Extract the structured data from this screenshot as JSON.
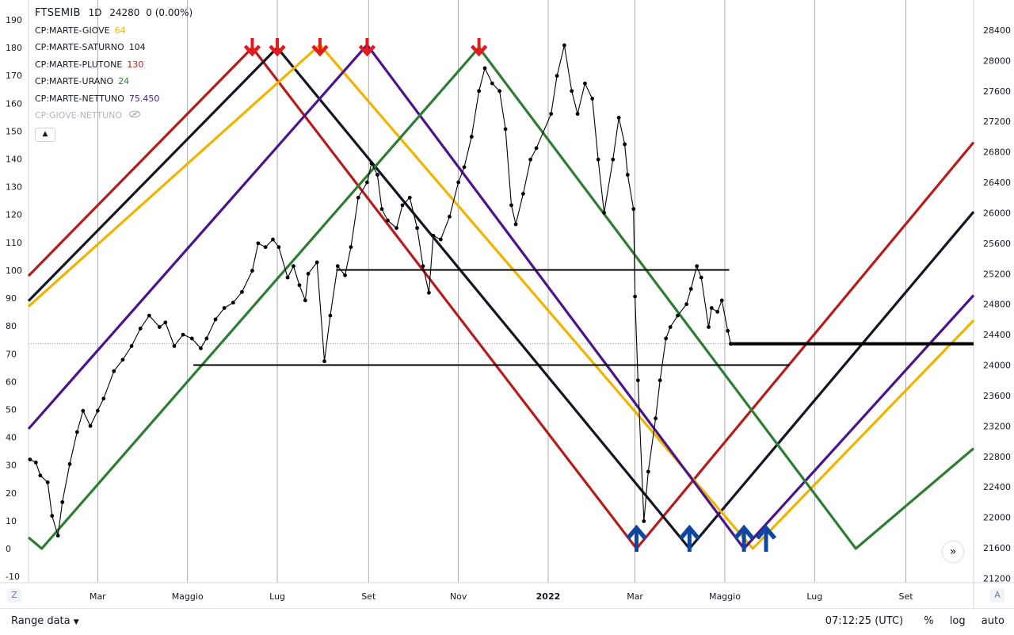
{
  "legend": {
    "symbol": "FTSEMIB",
    "interval": "1D",
    "price": "24280",
    "change": "0 (0.00%)",
    "series": [
      {
        "name": "CP:MARTE-GIOVE",
        "value": "64",
        "color": "#f0b400"
      },
      {
        "name": "CP:MARTE-SATURNO",
        "value": "104",
        "color": "#131722"
      },
      {
        "name": "CP:MARTE-PLUTONE",
        "value": "130",
        "color": "#b71c1c"
      },
      {
        "name": "CP:MARTE-URANO",
        "value": "24",
        "color": "#2e7d32"
      },
      {
        "name": "CP:MARTE-NETTUNO",
        "value": "75.450",
        "color": "#4a148c"
      },
      {
        "name": "CP:GIOVE-NETTUNO",
        "value": "",
        "color": "#b2b5be"
      }
    ],
    "collapse_icon": "chevron-up-icon",
    "hidden_icon": "eye-off-icon"
  },
  "footer": {
    "range_label": "Range data",
    "time": "07:12:25 (UTC)",
    "percent": "%",
    "log": "log",
    "auto": "auto"
  },
  "corner": {
    "left": "Z",
    "right": "A"
  },
  "chart_data": {
    "type": "line",
    "x_axis_labels": [
      "Mar",
      "Maggio",
      "Lug",
      "Set",
      "Nov",
      "2022",
      "Mar",
      "Maggio",
      "Lug",
      "Set"
    ],
    "x_axis_dates": [
      "2021-03-01",
      "2021-05-01",
      "2021-07-01",
      "2021-09-01",
      "2021-11-01",
      "2022-01-01",
      "2022-03-01",
      "2022-05-01",
      "2022-07-01",
      "2022-09-01"
    ],
    "x_range": [
      "2021-01-13",
      "2022-10-17"
    ],
    "left_axis": {
      "ticks": [
        -10,
        0,
        10,
        20,
        30,
        40,
        50,
        60,
        70,
        80,
        90,
        100,
        110,
        120,
        130,
        140,
        150,
        160,
        170,
        180,
        190
      ],
      "range": [
        -13,
        194
      ]
    },
    "right_axis": {
      "ticks": [
        21200,
        21600,
        22000,
        22400,
        22800,
        23200,
        23600,
        24000,
        24400,
        24800,
        25200,
        25600,
        26000,
        26400,
        26800,
        27200,
        27600,
        28000,
        28400
      ],
      "range": [
        21130,
        28560
      ]
    },
    "cycle_lines": [
      {
        "name": "CP:MARTE-PLUTONE",
        "color": "#b71c1c",
        "points": [
          [
            "2021-01-13",
            98
          ],
          [
            "2021-06-14",
            180
          ],
          [
            "2022-03-02",
            0
          ],
          [
            "2022-10-17",
            146
          ]
        ]
      },
      {
        "name": "CP:MARTE-SATURNO",
        "color": "#131722",
        "points": [
          [
            "2021-01-13",
            89
          ],
          [
            "2021-07-01",
            180
          ],
          [
            "2022-04-07",
            0
          ],
          [
            "2022-10-17",
            121
          ]
        ]
      },
      {
        "name": "CP:MARTE-GIOVE",
        "color": "#f0b400",
        "points": [
          [
            "2021-01-13",
            87
          ],
          [
            "2021-07-30",
            181
          ],
          [
            "2022-05-20",
            0
          ],
          [
            "2022-10-17",
            82
          ]
        ]
      },
      {
        "name": "CP:MARTE-NETTUNO",
        "color": "#4a148c",
        "points": [
          [
            "2021-01-13",
            43
          ],
          [
            "2021-08-31",
            181
          ],
          [
            "2022-05-14",
            0
          ],
          [
            "2022-10-17",
            91
          ]
        ]
      },
      {
        "name": "CP:MARTE-URANO",
        "color": "#2e7d32",
        "points": [
          [
            "2021-01-13",
            4
          ],
          [
            "2021-01-22",
            0
          ],
          [
            "2021-11-15",
            180
          ],
          [
            "2022-07-29",
            0
          ],
          [
            "2022-10-17",
            36
          ]
        ]
      }
    ],
    "price_series": {
      "name": "FTSEMIB",
      "axis": "right",
      "points": [
        [
          "2021-01-14",
          22760
        ],
        [
          "2021-01-18",
          22720
        ],
        [
          "2021-01-21",
          22550
        ],
        [
          "2021-01-26",
          22460
        ],
        [
          "2021-01-29",
          22020
        ],
        [
          "2021-02-02",
          21760
        ],
        [
          "2021-02-05",
          22200
        ],
        [
          "2021-02-10",
          22700
        ],
        [
          "2021-02-15",
          23120
        ],
        [
          "2021-02-19",
          23400
        ],
        [
          "2021-02-24",
          23200
        ],
        [
          "2021-03-01",
          23400
        ],
        [
          "2021-03-05",
          23560
        ],
        [
          "2021-03-12",
          23920
        ],
        [
          "2021-03-18",
          24070
        ],
        [
          "2021-03-24",
          24250
        ],
        [
          "2021-03-30",
          24480
        ],
        [
          "2021-04-05",
          24650
        ],
        [
          "2021-04-12",
          24500
        ],
        [
          "2021-04-16",
          24560
        ],
        [
          "2021-04-22",
          24250
        ],
        [
          "2021-04-28",
          24400
        ],
        [
          "2021-05-04",
          24350
        ],
        [
          "2021-05-10",
          24220
        ],
        [
          "2021-05-14",
          24350
        ],
        [
          "2021-05-20",
          24600
        ],
        [
          "2021-05-26",
          24750
        ],
        [
          "2021-06-01",
          24820
        ],
        [
          "2021-06-07",
          24960
        ],
        [
          "2021-06-14",
          25240
        ],
        [
          "2021-06-18",
          25600
        ],
        [
          "2021-06-23",
          25550
        ],
        [
          "2021-06-28",
          25650
        ],
        [
          "2021-07-02",
          25550
        ],
        [
          "2021-07-08",
          25150
        ],
        [
          "2021-07-12",
          25300
        ],
        [
          "2021-07-16",
          25050
        ],
        [
          "2021-07-20",
          24850
        ],
        [
          "2021-07-22",
          25200
        ],
        [
          "2021-07-28",
          25350
        ],
        [
          "2021-08-02",
          24050
        ],
        [
          "2021-08-06",
          24650
        ],
        [
          "2021-08-11",
          25300
        ],
        [
          "2021-08-16",
          25180
        ],
        [
          "2021-08-20",
          25550
        ],
        [
          "2021-08-25",
          26200
        ],
        [
          "2021-08-31",
          26400
        ],
        [
          "2021-09-03",
          26650
        ],
        [
          "2021-09-07",
          26500
        ],
        [
          "2021-09-10",
          26050
        ],
        [
          "2021-09-14",
          25900
        ],
        [
          "2021-09-20",
          25800
        ],
        [
          "2021-09-24",
          26100
        ],
        [
          "2021-09-29",
          26200
        ],
        [
          "2021-10-04",
          25800
        ],
        [
          "2021-10-08",
          25300
        ],
        [
          "2021-10-12",
          24950
        ],
        [
          "2021-10-15",
          25700
        ],
        [
          "2021-10-20",
          25650
        ],
        [
          "2021-10-26",
          25950
        ],
        [
          "2021-11-01",
          26400
        ],
        [
          "2021-11-05",
          26600
        ],
        [
          "2021-11-10",
          27000
        ],
        [
          "2021-11-15",
          27600
        ],
        [
          "2021-11-19",
          27900
        ],
        [
          "2021-11-24",
          27700
        ],
        [
          "2021-11-29",
          27600
        ],
        [
          "2021-12-03",
          27100
        ],
        [
          "2021-12-07",
          26100
        ],
        [
          "2021-12-10",
          25850
        ],
        [
          "2021-12-15",
          26250
        ],
        [
          "2021-12-20",
          26700
        ],
        [
          "2021-12-24",
          26850
        ],
        [
          "2022-01-03",
          27300
        ],
        [
          "2022-01-07",
          27800
        ],
        [
          "2022-01-12",
          28200
        ],
        [
          "2022-01-17",
          27600
        ],
        [
          "2022-01-21",
          27300
        ],
        [
          "2022-01-26",
          27700
        ],
        [
          "2022-01-31",
          27500
        ],
        [
          "2022-02-04",
          26700
        ],
        [
          "2022-02-08",
          26000
        ],
        [
          "2022-02-14",
          26700
        ],
        [
          "2022-02-18",
          27250
        ],
        [
          "2022-02-22",
          26900
        ],
        [
          "2022-02-24",
          26500
        ],
        [
          "2022-02-28",
          26050
        ],
        [
          "2022-03-01",
          24900
        ],
        [
          "2022-03-03",
          23800
        ],
        [
          "2022-03-07",
          21950
        ],
        [
          "2022-03-10",
          22600
        ],
        [
          "2022-03-15",
          23300
        ],
        [
          "2022-03-18",
          23800
        ],
        [
          "2022-03-22",
          24350
        ],
        [
          "2022-03-25",
          24500
        ],
        [
          "2022-03-30",
          24650
        ],
        [
          "2022-04-05",
          24800
        ],
        [
          "2022-04-08",
          25000
        ],
        [
          "2022-04-12",
          25300
        ],
        [
          "2022-04-15",
          25150
        ],
        [
          "2022-04-20",
          24500
        ],
        [
          "2022-04-22",
          24750
        ],
        [
          "2022-04-26",
          24700
        ],
        [
          "2022-04-29",
          24850
        ],
        [
          "2022-05-03",
          24450
        ],
        [
          "2022-05-05",
          24280
        ]
      ]
    },
    "horizontal_lines": [
      {
        "from": "2021-08-10",
        "to": "2022-05-04",
        "value": 25250,
        "axis": "right",
        "width": 2
      },
      {
        "from": "2021-05-05",
        "to": "2022-06-14",
        "value": 24000,
        "axis": "right",
        "width": 2
      },
      {
        "from": "2022-05-05",
        "to": "2022-10-17",
        "value": 24280,
        "axis": "right",
        "width": 4
      }
    ],
    "current_price": 24280,
    "markers": [
      {
        "type": "down",
        "date": "2021-06-14",
        "color": "#e31b1b"
      },
      {
        "type": "down",
        "date": "2021-07-01",
        "color": "#e31b1b"
      },
      {
        "type": "down",
        "date": "2021-07-30",
        "color": "#e31b1b"
      },
      {
        "type": "down",
        "date": "2021-08-31",
        "color": "#e31b1b"
      },
      {
        "type": "down",
        "date": "2021-11-15",
        "color": "#e31b1b"
      },
      {
        "type": "up",
        "date": "2022-03-02",
        "color": "#0d47a1"
      },
      {
        "type": "up",
        "date": "2022-04-07",
        "color": "#0d47a1"
      },
      {
        "type": "up",
        "date": "2022-05-14",
        "color": "#0d47a1"
      },
      {
        "type": "up",
        "date": "2022-05-29",
        "color": "#0d47a1"
      }
    ]
  }
}
